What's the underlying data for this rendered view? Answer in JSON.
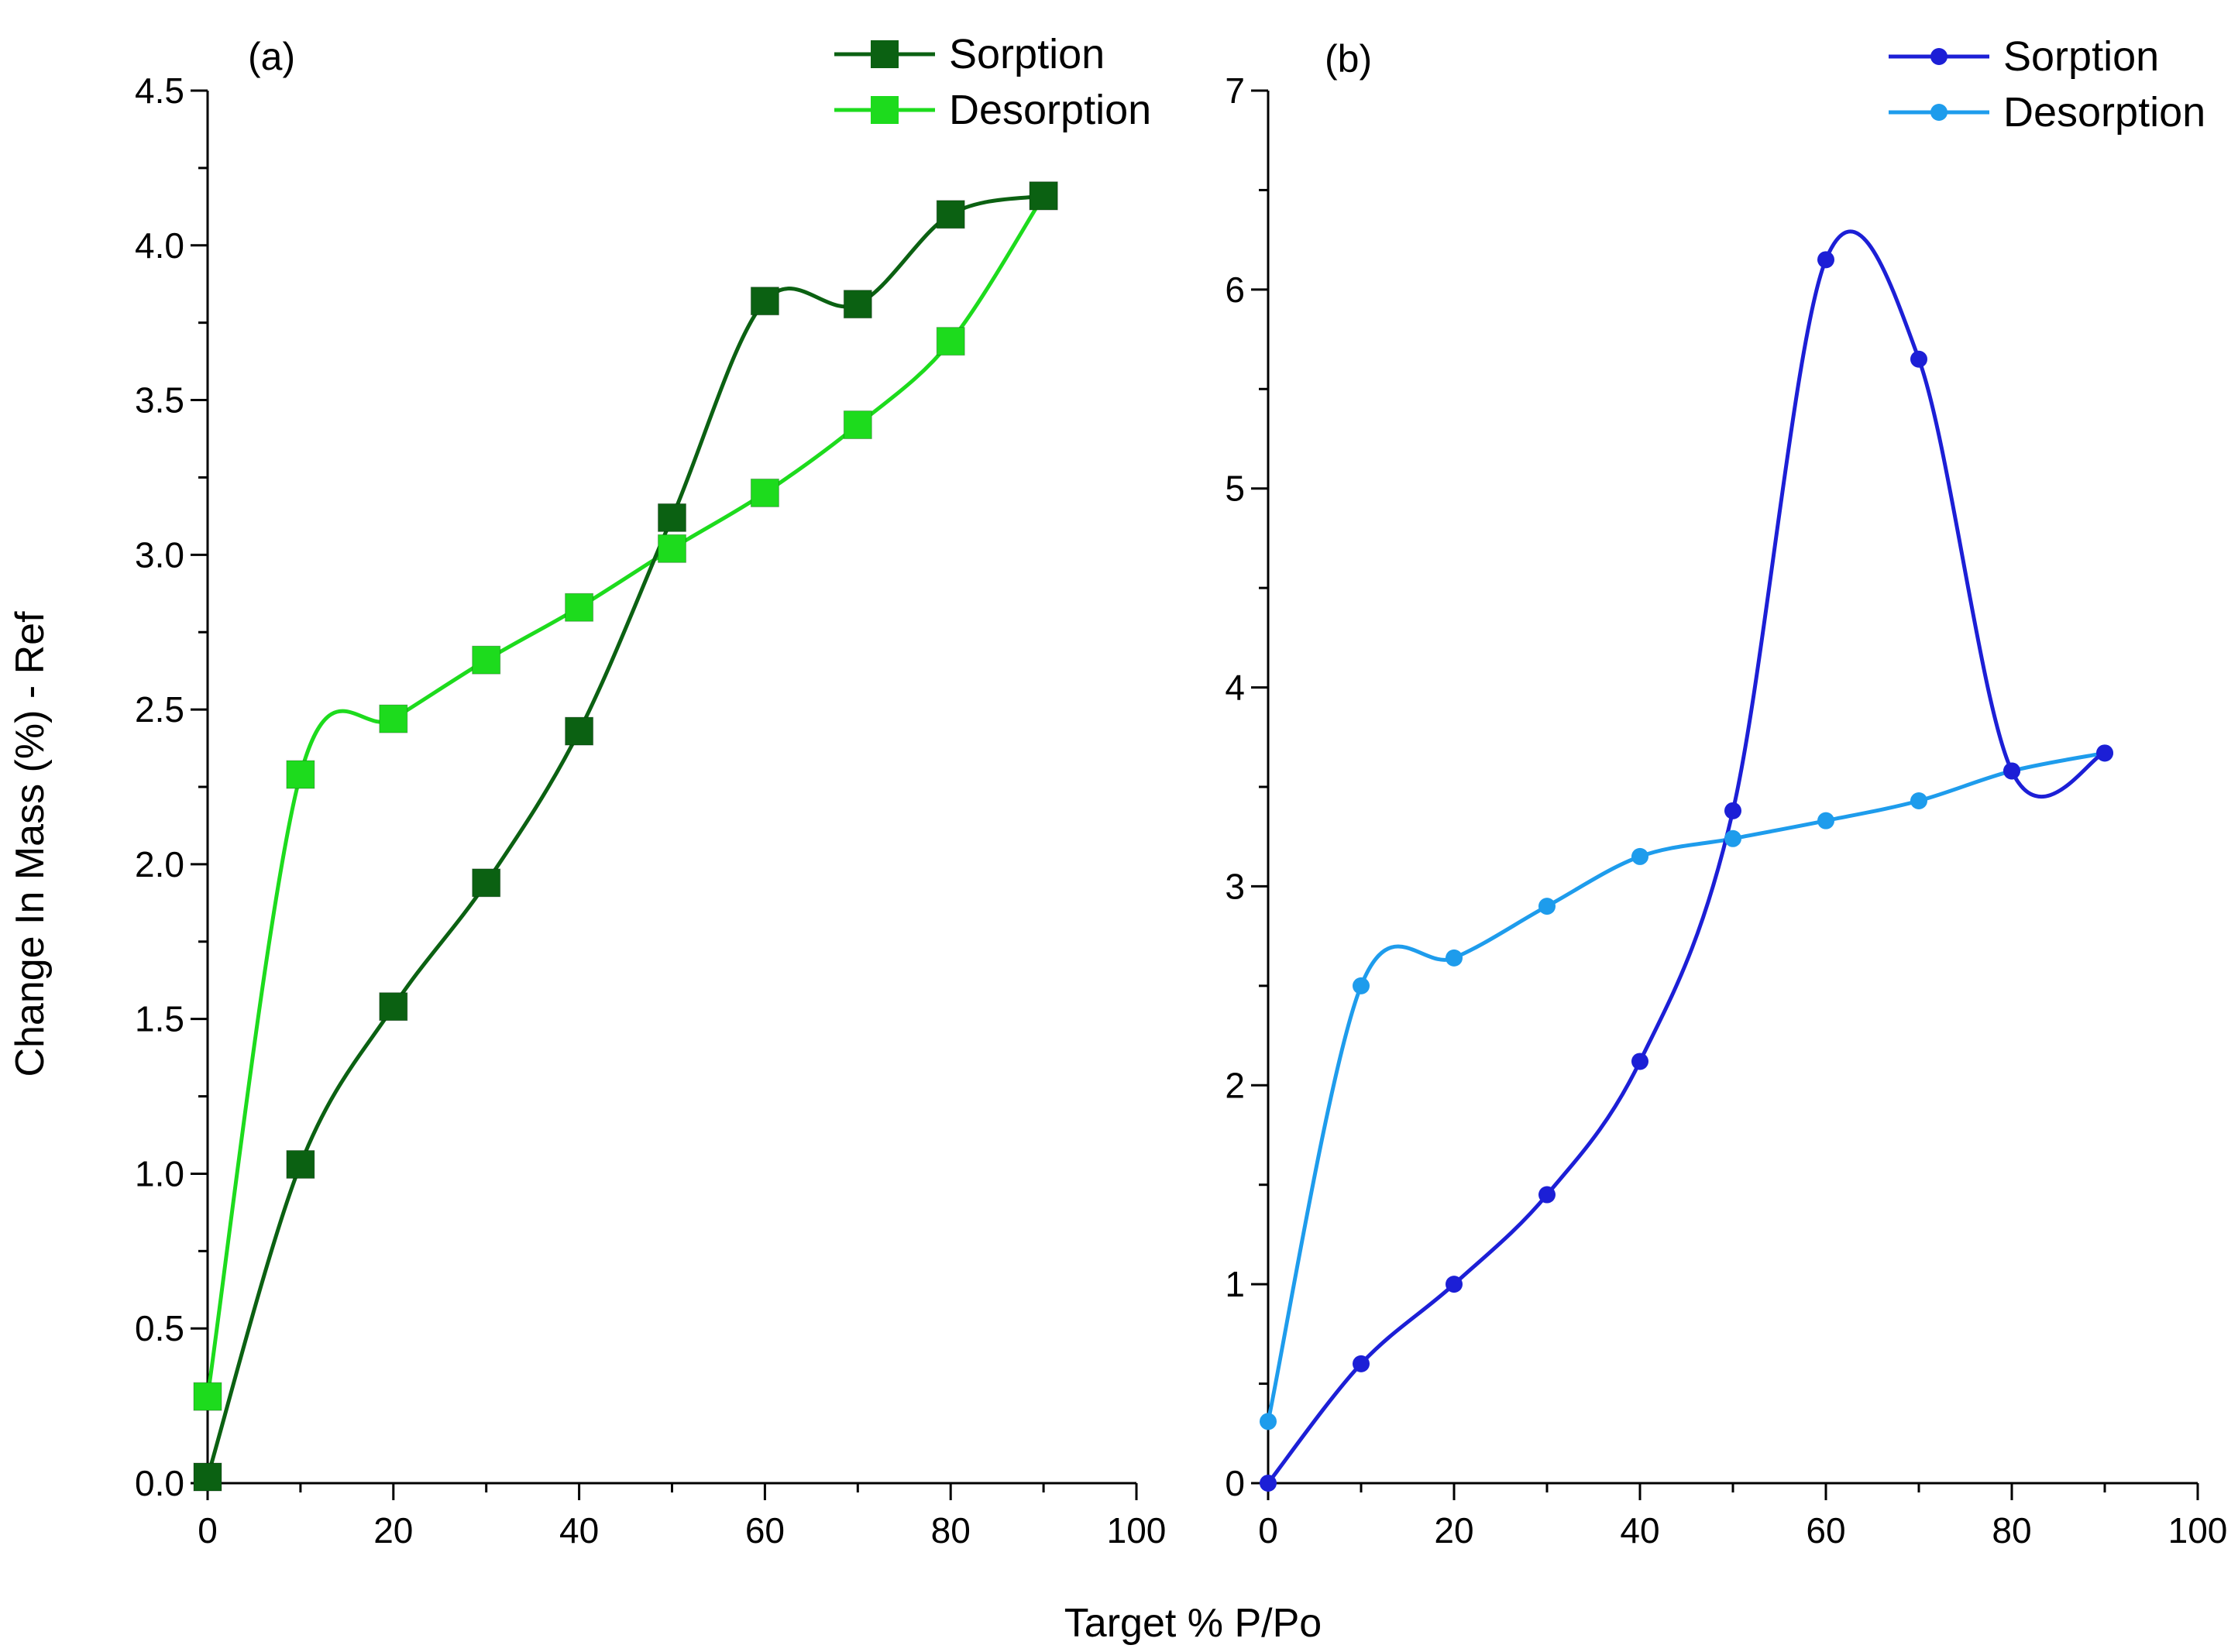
{
  "figure": {
    "xlabel": "Target % P/Po",
    "ylabel": "Change In Mass (%) - Ref"
  },
  "chart_data": [
    {
      "type": "line",
      "panel_label": "(a)",
      "x": [
        0,
        10,
        20,
        30,
        40,
        50,
        60,
        70,
        80,
        90
      ],
      "xlim": [
        0,
        100
      ],
      "ylim": [
        0,
        4.5
      ],
      "xticks": [
        0,
        20,
        40,
        60,
        80,
        100
      ],
      "yticks": [
        0,
        0.5,
        1.0,
        1.5,
        2.0,
        2.5,
        3.0,
        3.5,
        4.0,
        4.5
      ],
      "ytick_labels": [
        "0.0",
        "0.5",
        "1.0",
        "1.5",
        "2.0",
        "2.5",
        "3.0",
        "3.5",
        "4.0",
        "4.5"
      ],
      "marker": "square",
      "legend_position": "top-right",
      "series": [
        {
          "name": "Sorption",
          "color": "#0b6112",
          "values": [
            0.02,
            1.03,
            1.54,
            1.94,
            2.43,
            3.12,
            3.82,
            3.81,
            4.1,
            4.16
          ]
        },
        {
          "name": "Desorption",
          "color": "#1ddb1d",
          "values": [
            0.28,
            2.29,
            2.47,
            2.66,
            2.83,
            3.02,
            3.2,
            3.42,
            3.69,
            4.16
          ]
        }
      ]
    },
    {
      "type": "line",
      "panel_label": "(b)",
      "x": [
        0,
        10,
        20,
        30,
        40,
        50,
        60,
        70,
        80,
        90
      ],
      "xlim": [
        0,
        100
      ],
      "ylim": [
        0,
        7
      ],
      "xticks": [
        0,
        20,
        40,
        60,
        80,
        100
      ],
      "yticks": [
        0,
        1,
        2,
        3,
        4,
        5,
        6,
        7
      ],
      "ytick_labels": [
        "0",
        "1",
        "2",
        "3",
        "4",
        "5",
        "6",
        "7"
      ],
      "marker": "circle",
      "legend_position": "top-right",
      "series": [
        {
          "name": "Sorption",
          "color": "#1c1fd6",
          "values": [
            0.0,
            0.6,
            1.0,
            1.45,
            2.12,
            3.38,
            6.15,
            5.65,
            3.58,
            3.67
          ]
        },
        {
          "name": "Desorption",
          "color": "#1e9cec",
          "values": [
            0.31,
            2.5,
            2.64,
            2.9,
            3.15,
            3.24,
            3.33,
            3.43,
            3.58,
            3.67
          ]
        }
      ]
    }
  ]
}
